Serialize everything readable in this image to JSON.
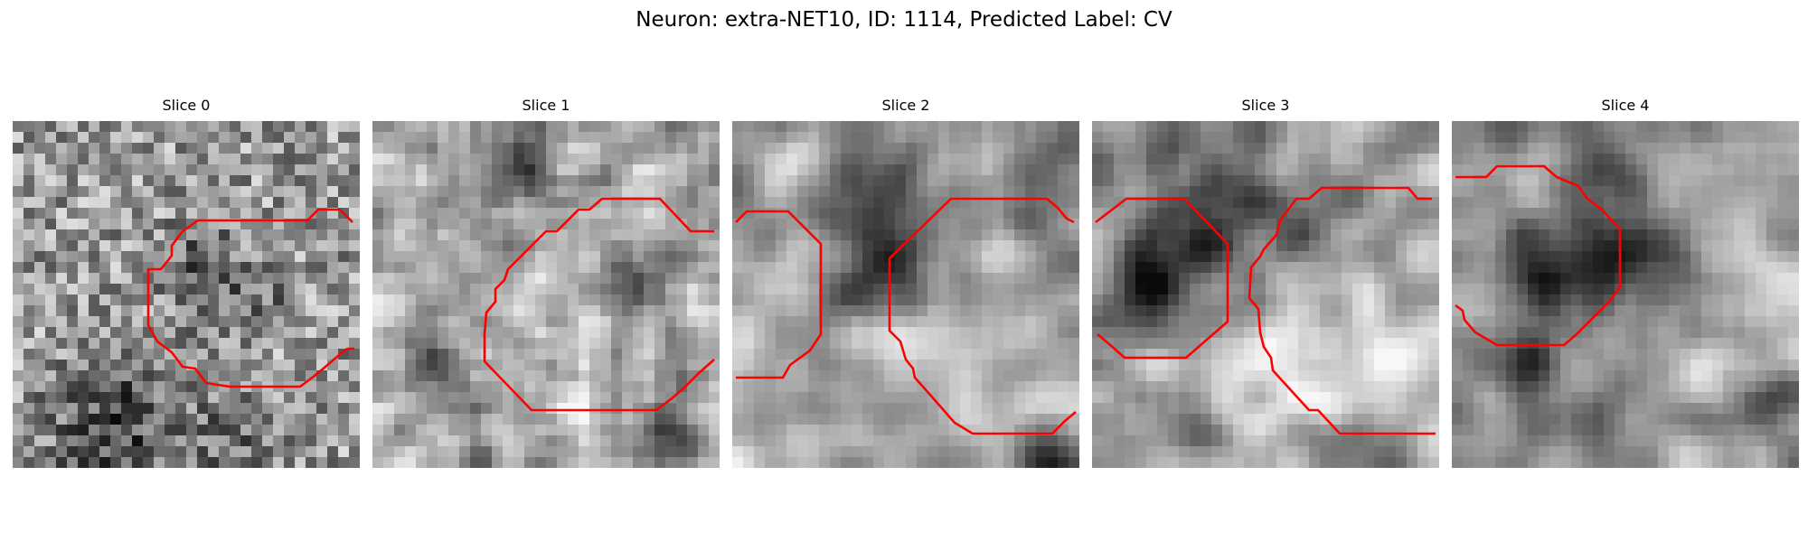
{
  "figure": {
    "title": "Neuron: extra-NET10, ID: 1114, Predicted Label: CV",
    "colormap": "gray",
    "contour_color": "#ff0000"
  },
  "slices": [
    {
      "title": "Slice 0"
    },
    {
      "title": "Slice 1"
    },
    {
      "title": "Slice 2"
    },
    {
      "title": "Slice 3"
    },
    {
      "title": "Slice 4"
    }
  ]
}
